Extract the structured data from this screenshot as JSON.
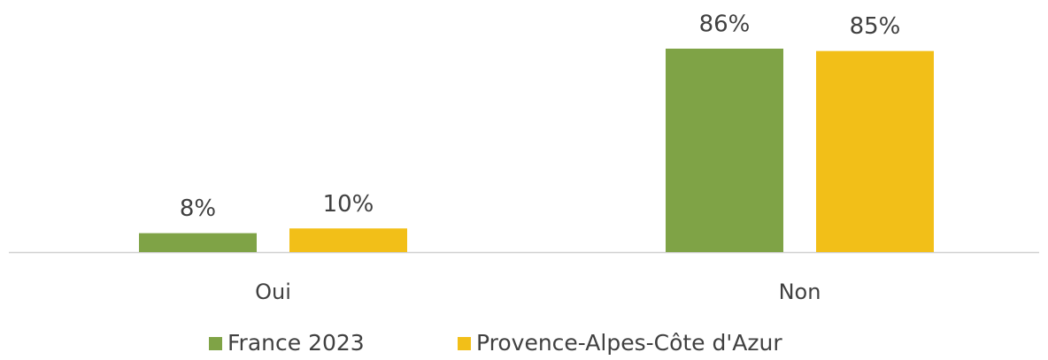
{
  "chart_data": {
    "type": "bar",
    "categories": [
      "Oui",
      "Non"
    ],
    "series": [
      {
        "name": "France 2023",
        "color": "#7fa346",
        "values": [
          8,
          86
        ],
        "value_labels": [
          "8%",
          "86%"
        ]
      },
      {
        "name": "Provence-Alpes-Côte d'Azur",
        "color": "#f2bf18",
        "values": [
          10,
          85
        ],
        "value_labels": [
          "10%",
          "85%"
        ]
      }
    ]
  }
}
